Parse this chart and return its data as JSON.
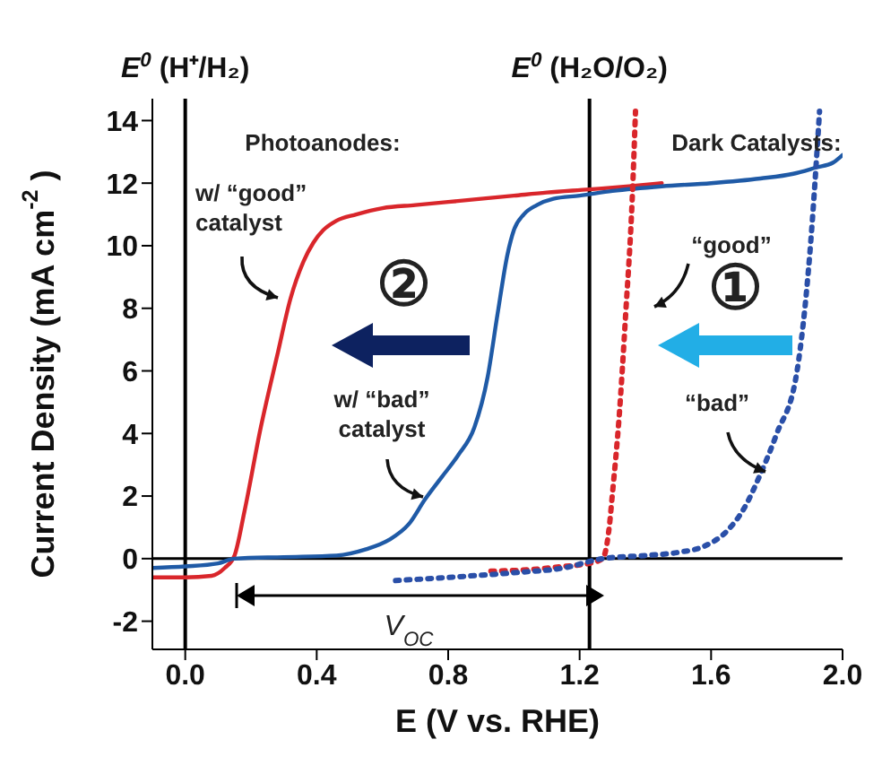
{
  "chart_data": {
    "type": "line",
    "xlabel": "E (V vs. RHE)",
    "ylabel": "Current Density (mA cm$^{-2}$)",
    "xlim": [
      -0.1,
      2.0
    ],
    "ylim": [
      -2.9,
      14.7
    ],
    "xticks": [
      {
        "value": 0,
        "label": "0.0"
      },
      {
        "value": 0.4,
        "label": "0.4"
      },
      {
        "value": 0.8,
        "label": "0.8"
      },
      {
        "value": 1.2,
        "label": "1.2"
      },
      {
        "value": 1.6,
        "label": "1.6"
      },
      {
        "value": 2.0,
        "label": "2.0"
      }
    ],
    "yticks": [
      -2,
      0,
      2,
      4,
      6,
      8,
      10,
      12,
      14
    ],
    "marker": "none",
    "series": [
      {
        "color": "#d9262b",
        "line_style": "solid",
        "x": [
          -0.1,
          0.0,
          0.08,
          0.12,
          0.15,
          0.18,
          0.23,
          0.28,
          0.32,
          0.36,
          0.39,
          0.42,
          0.46,
          0.52,
          0.6,
          0.7,
          0.8,
          0.9,
          1.0,
          1.1,
          1.23,
          1.35,
          1.45
        ],
        "values": [
          -0.6,
          -0.6,
          -0.55,
          -0.3,
          0.1,
          1.5,
          4.2,
          6.5,
          8.3,
          9.5,
          10.1,
          10.5,
          10.8,
          11.0,
          11.2,
          11.3,
          11.4,
          11.5,
          11.6,
          11.7,
          11.8,
          11.9,
          12.0
        ]
      },
      {
        "color": "#1f5aa6",
        "line_style": "solid",
        "x": [
          -0.1,
          0.0,
          0.1,
          0.15,
          0.3,
          0.46,
          0.55,
          0.62,
          0.68,
          0.73,
          0.78,
          0.83,
          0.88,
          0.92,
          0.95,
          0.98,
          1.0,
          1.03,
          1.07,
          1.12,
          1.2,
          1.3,
          1.45,
          1.6,
          1.75,
          1.85,
          1.92,
          1.97,
          2.0
        ],
        "values": [
          -0.3,
          -0.25,
          -0.15,
          0,
          0.05,
          0.1,
          0.3,
          0.6,
          1.1,
          1.9,
          2.6,
          3.3,
          4.2,
          5.8,
          7.8,
          9.7,
          10.5,
          11.0,
          11.3,
          11.5,
          11.6,
          11.75,
          11.9,
          12.0,
          12.15,
          12.3,
          12.5,
          12.65,
          12.9
        ]
      },
      {
        "color": "#d9262b",
        "line_style": "dotted",
        "x": [
          0.93,
          1.05,
          1.15,
          1.23,
          1.27,
          1.29,
          1.3,
          1.32,
          1.34,
          1.36,
          1.37
        ],
        "values": [
          -0.4,
          -0.35,
          -0.25,
          -0.15,
          0,
          1,
          2.1,
          4.5,
          7.8,
          11.5,
          14.3
        ]
      },
      {
        "color": "#2a4fa8",
        "line_style": "dotted",
        "x": [
          0.64,
          0.8,
          1.0,
          1.15,
          1.27,
          1.4,
          1.5,
          1.58,
          1.65,
          1.7,
          1.75,
          1.8,
          1.86,
          1.9,
          1.93
        ],
        "values": [
          -0.7,
          -0.6,
          -0.45,
          -0.3,
          0,
          0.1,
          0.2,
          0.4,
          0.9,
          1.6,
          2.7,
          4,
          5.9,
          9.7,
          14.3
        ]
      }
    ],
    "ref_lines": [
      {
        "axis": "x",
        "value": 0,
        "label": "E$^{0}$ (H⁺/H₂)",
        "color": "#000000"
      },
      {
        "axis": "x",
        "value": 1.23,
        "label": "E$^{0}$ (H₂O/O₂)",
        "color": "#000000"
      },
      {
        "axis": "y",
        "value": 0,
        "color": "#000000"
      }
    ],
    "annotations": [
      "Photoanodes:",
      "Dark Catalysts:",
      "w/ “good” catalyst",
      "“good”",
      "w/ “bad” catalyst",
      "“bad”",
      "②",
      "①",
      "V$_{OC}$"
    ]
  }
}
